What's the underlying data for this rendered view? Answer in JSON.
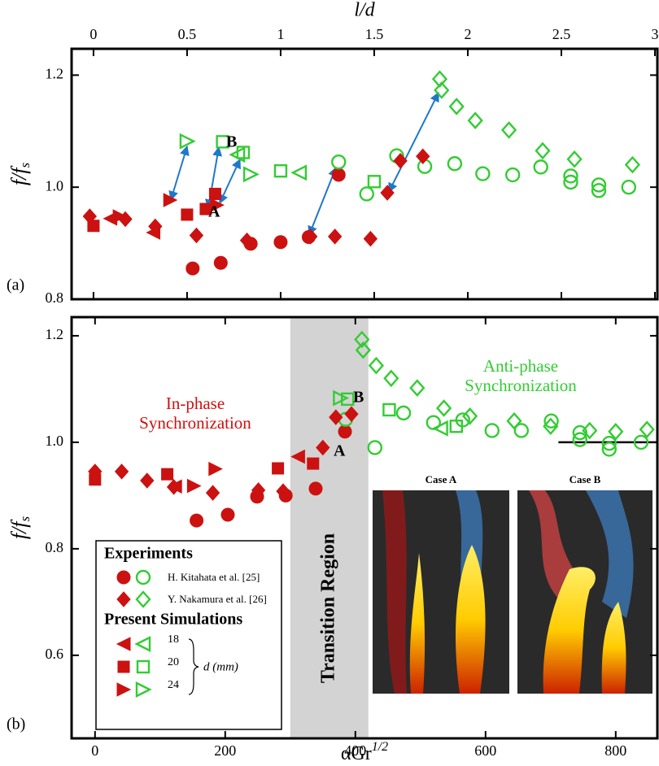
{
  "chart_data": [
    {
      "type": "scatter",
      "panel_label": "(a)",
      "xlabel": "l/d",
      "ylabel": {
        "main": "f/f",
        "sub": "s"
      },
      "xlim": [
        -0.117,
        3.013
      ],
      "ylim": [
        0.8,
        1.247
      ],
      "xticks": [
        0,
        0.5,
        1,
        1.5,
        2,
        2.5,
        3
      ],
      "yticks": [
        0.8,
        {
          "value": 1,
          "label": "1.0"
        },
        1.2
      ],
      "annotations": [
        "A",
        "B"
      ],
      "series": [
        {
          "marker": "circle",
          "filled": true,
          "color": "#cc1111",
          "x": [
            0.53,
            0.68,
            0.84,
            1.0,
            1.15,
            1.31
          ],
          "values": [
            0.855,
            0.865,
            0.899,
            0.902,
            0.911,
            1.022
          ]
        },
        {
          "marker": "circle",
          "filled": false,
          "color": "#33cc33",
          "x": [
            1.31,
            1.46,
            1.62,
            1.77,
            1.93,
            2.08,
            2.24,
            2.39,
            2.55,
            2.55,
            2.7,
            2.7,
            2.86
          ],
          "values": [
            1.045,
            0.988,
            1.056,
            1.037,
            1.042,
            1.024,
            1.022,
            1.036,
            1.02,
            1.009,
            1.004,
            0.994,
            1.0
          ]
        },
        {
          "marker": "diamond",
          "filled": true,
          "color": "#cc1111",
          "x": [
            -0.02,
            0.17,
            0.33,
            0.55,
            0.82,
            1.16,
            1.29,
            1.48,
            1.57,
            1.64,
            1.76
          ],
          "values": [
            0.948,
            0.943,
            0.93,
            0.914,
            0.905,
            0.912,
            0.912,
            0.908,
            0.99,
            1.047,
            1.055
          ]
        },
        {
          "marker": "diamond",
          "filled": false,
          "color": "#33cc33",
          "x": [
            1.85,
            1.86,
            1.94,
            2.04,
            2.22,
            2.4,
            2.57,
            2.88
          ],
          "values": [
            1.193,
            1.173,
            1.144,
            1.119,
            1.102,
            1.065,
            1.05,
            1.04
          ]
        },
        {
          "marker": "tri-left",
          "filled": true,
          "color": "#cc1111",
          "x": [
            0.09,
            0.32
          ],
          "values": [
            0.944,
            0.919
          ]
        },
        {
          "marker": "square",
          "filled": true,
          "color": "#cc1111",
          "x": [
            0,
            0.5,
            0.6,
            0.65
          ],
          "values": [
            0.931,
            0.951,
            0.961,
            0.988
          ]
        },
        {
          "marker": "tri-right",
          "filled": true,
          "color": "#cc1111",
          "x": [
            0.14,
            0.41,
            0.66
          ],
          "values": [
            0.948,
            0.977,
            0.968
          ]
        },
        {
          "marker": "tri-left",
          "filled": false,
          "color": "#33cc33",
          "x": [
            0.77,
            1.1
          ],
          "values": [
            1.058,
            1.026
          ]
        },
        {
          "marker": "square",
          "filled": false,
          "color": "#33cc33",
          "x": [
            0.69,
            0.8,
            1.0,
            1.5
          ],
          "values": [
            1.081,
            1.062,
            1.029,
            1.01
          ]
        },
        {
          "marker": "tri-right",
          "filled": false,
          "color": "#33cc33",
          "x": [
            0.5,
            0.84
          ],
          "values": [
            1.082,
            1.023
          ]
        }
      ]
    },
    {
      "type": "scatter",
      "panel_label": "(b)",
      "xlabel": {
        "main": "αGr",
        "sup": "1/2"
      },
      "ylabel": {
        "main": "f/f",
        "sub": "s"
      },
      "xlim": [
        -36,
        864
      ],
      "ylim": [
        0.444,
        1.235
      ],
      "xticks": [
        0,
        200,
        400,
        600,
        800
      ],
      "yticks": [
        0.6,
        0.8,
        {
          "value": 1,
          "label": "1.0"
        },
        1.2
      ],
      "shaded_region": {
        "x": [
          300,
          420
        ],
        "color": "#d3d3d3",
        "label": "Transition Region"
      },
      "reference_line": {
        "x": [
          712,
          864
        ],
        "y": 1
      },
      "annotations": [
        "A",
        "B"
      ],
      "regions": [
        {
          "lines": [
            "In-phase",
            "Synchronization"
          ],
          "color": "#cc1111"
        },
        {
          "lines": [
            "Anti-phase",
            "Synchronization"
          ],
          "color": "#33cc33"
        }
      ],
      "insets": [
        "Case A",
        "Case B"
      ],
      "legend": {
        "experiments": "Experiments",
        "kitahata": "H. Kitahata et al. [25]",
        "nakamura": "Y. Nakamura et al. [26]",
        "simulations": "Present Simulations",
        "diameters": [
          "18",
          "20",
          "24"
        ],
        "unit": "d (mm)"
      },
      "series": [
        {
          "marker": "circle",
          "filled": true,
          "color": "#cc1111",
          "x": [
            156,
            204,
            249,
            293,
            339,
            384
          ],
          "values": [
            0.853,
            0.864,
            0.898,
            0.9,
            0.913,
            1.02
          ]
        },
        {
          "marker": "circle",
          "filled": false,
          "color": "#33cc33",
          "x": [
            385,
            430,
            474,
            520,
            565,
            610,
            655,
            701,
            745,
            745,
            790,
            790,
            839
          ],
          "values": [
            1.043,
            0.99,
            1.055,
            1.037,
            1.042,
            1.022,
            1.022,
            1.04,
            1.018,
            1.005,
            0.998,
            0.987,
            1.0
          ]
        },
        {
          "marker": "diamond",
          "filled": true,
          "color": "#cc1111",
          "x": [
            0,
            41,
            80,
            121,
            181,
            251,
            289,
            350,
            370,
            394
          ],
          "values": [
            0.945,
            0.945,
            0.928,
            0.916,
            0.905,
            0.91,
            0.908,
            0.99,
            1.047,
            1.053
          ]
        },
        {
          "marker": "diamond",
          "filled": false,
          "color": "#33cc33",
          "x": [
            410,
            412,
            432,
            455,
            495,
            536,
            576,
            644,
            700,
            760,
            800,
            848
          ],
          "values": [
            1.193,
            1.173,
            1.144,
            1.12,
            1.102,
            1.064,
            1.049,
            1.04,
            1.03,
            1.022,
            1.02,
            1.024
          ]
        },
        {
          "marker": "tri-left",
          "filled": true,
          "color": "#cc1111",
          "x": [
            123,
            312
          ],
          "values": [
            0.917,
            0.973
          ]
        },
        {
          "marker": "square",
          "filled": true,
          "color": "#cc1111",
          "x": [
            0,
            111,
            281,
            335
          ],
          "values": [
            0.93,
            0.94,
            0.951,
            0.96
          ]
        },
        {
          "marker": "tri-right",
          "filled": true,
          "color": "#cc1111",
          "x": [
            152,
            185
          ],
          "values": [
            0.918,
            0.95
          ]
        },
        {
          "marker": "tri-left",
          "filled": false,
          "color": "#33cc33",
          "x": [
            531
          ],
          "values": [
            1.026
          ]
        },
        {
          "marker": "square",
          "filled": false,
          "color": "#33cc33",
          "x": [
            388,
            452,
            555
          ],
          "values": [
            1.081,
            1.061,
            1.03
          ]
        },
        {
          "marker": "tri-right",
          "filled": false,
          "color": "#33cc33",
          "x": [
            377
          ],
          "values": [
            1.083
          ]
        }
      ]
    }
  ]
}
